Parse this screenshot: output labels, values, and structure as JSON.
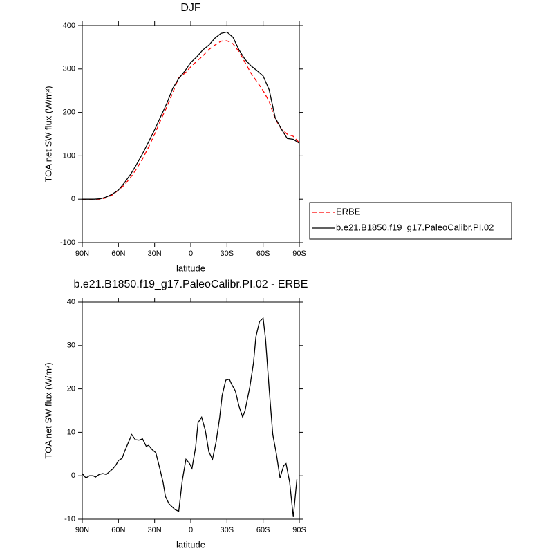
{
  "chart_data": [
    {
      "type": "line",
      "title": "DJF",
      "x_label": "latitude",
      "y_label": "TOA net SW flux (W/m²)",
      "x": [
        90,
        85,
        80,
        75,
        70,
        65,
        60,
        55,
        50,
        45,
        40,
        35,
        30,
        25,
        20,
        15,
        10,
        5,
        0,
        -5,
        -10,
        -15,
        -20,
        -25,
        -30,
        -35,
        -40,
        -45,
        -50,
        -55,
        -60,
        -65,
        -70,
        -75,
        -80,
        -85,
        -90
      ],
      "series": [
        {
          "name": "ERBE",
          "color": "#ff0000",
          "dashed": true,
          "values": [
            0,
            0,
            0,
            0,
            3,
            10,
            21,
            33,
            50,
            70,
            93,
            120,
            150,
            182,
            212,
            245,
            280,
            290,
            305,
            318,
            330,
            345,
            355,
            364,
            365,
            358,
            340,
            315,
            290,
            270,
            250,
            225,
            185,
            162,
            150,
            145,
            130
          ]
        },
        {
          "name": "b.e21.B1850.f19_g17.PaleoCalibr.PI.02",
          "color": "#000000",
          "dashed": false,
          "values": [
            0,
            0,
            0,
            1,
            5,
            12,
            21,
            38,
            57,
            80,
            105,
            132,
            160,
            190,
            220,
            255,
            278,
            295,
            315,
            328,
            344,
            355,
            371,
            382,
            385,
            373,
            344,
            322,
            307,
            296,
            284,
            252,
            188,
            162,
            140,
            138,
            129
          ]
        }
      ],
      "xlim": [
        90,
        -90
      ],
      "xticks": [
        {
          "value": 90,
          "label": "90N"
        },
        {
          "value": 60,
          "label": "60N"
        },
        {
          "value": 30,
          "label": "30N"
        },
        0,
        {
          "value": -30,
          "label": "30S"
        },
        {
          "value": -60,
          "label": "60S"
        },
        {
          "value": -90,
          "label": "90S"
        }
      ],
      "ylim": [
        -100,
        400
      ],
      "yticks": [
        -100,
        0,
        100,
        200,
        300,
        400
      ],
      "legend": "right"
    },
    {
      "type": "line",
      "title": "b.e21.B1850.f19_g17.PaleoCalibr.PI.02 - ERBE",
      "x_label": "latitude",
      "y_label": "TOA net SW flux (W/m²)",
      "x": [
        90,
        87,
        84,
        81,
        79,
        76,
        73,
        70,
        68,
        65,
        62,
        60,
        57,
        55,
        52,
        49,
        46,
        43,
        40,
        37,
        35,
        32,
        29,
        26,
        23,
        21,
        18,
        13,
        10,
        7,
        4,
        1,
        -1,
        -4,
        -6,
        -9,
        -12,
        -15,
        -18,
        -21,
        -24,
        -26,
        -29,
        -32,
        -34,
        -37,
        -40,
        -43,
        -45,
        -49,
        -52,
        -54,
        -57,
        -60,
        -62,
        -65,
        -68,
        -71,
        -74,
        -77,
        -79,
        -82,
        -85,
        -88
      ],
      "color": "#000000",
      "values": [
        0.5,
        -0.5,
        0,
        0,
        -0.3,
        0.3,
        0.5,
        0.3,
        0.8,
        1.5,
        2.5,
        3.5,
        4,
        5.5,
        7.5,
        9.5,
        8.3,
        8.2,
        8.5,
        6.8,
        7,
        6,
        5.3,
        2,
        -1.5,
        -4.8,
        -6.5,
        -7.8,
        -8.2,
        -1,
        3.8,
        2.8,
        1.7,
        6.5,
        12.2,
        13.5,
        10.5,
        5.5,
        3.8,
        7.8,
        13.5,
        18.5,
        22,
        22.2,
        21,
        19.5,
        16,
        13.5,
        15,
        20.5,
        26,
        32,
        35.5,
        36.3,
        31.5,
        20,
        9.5,
        5,
        -0.5,
        2.3,
        2.8,
        -1.5,
        -9.5,
        -0.8
      ],
      "xlim": [
        90,
        -90
      ],
      "xticks": [
        {
          "value": 90,
          "label": "90N"
        },
        {
          "value": 60,
          "label": "60N"
        },
        {
          "value": 30,
          "label": "30N"
        },
        0,
        {
          "value": -30,
          "label": "30S"
        },
        {
          "value": -60,
          "label": "60S"
        },
        {
          "value": -90,
          "label": "90S"
        }
      ],
      "ylim": [
        -10,
        40
      ],
      "yticks": [
        -10,
        0,
        10,
        20,
        30,
        40
      ]
    }
  ]
}
